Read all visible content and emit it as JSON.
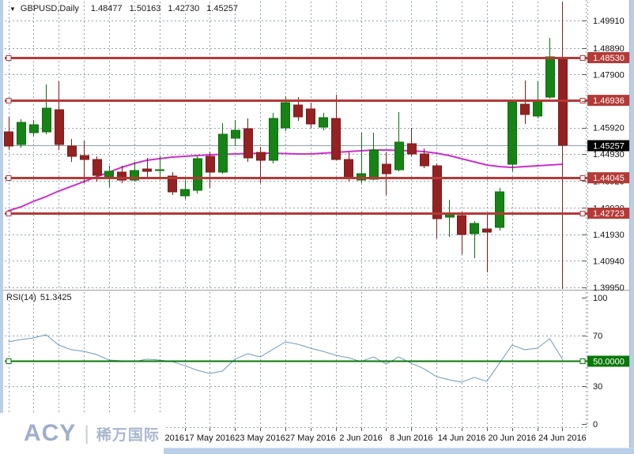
{
  "window": {
    "title": {
      "symbol": "GBPUSD,Daily",
      "open": "1.48477",
      "high": "1.50163",
      "low": "1.42730",
      "close": "1.45257"
    }
  },
  "rsi_label": {
    "name": "RSI(14)",
    "value": "51.3425"
  },
  "logo": {
    "brand": "ACY",
    "divider": "|",
    "name_cn": "稀万国际"
  },
  "chart_data": {
    "type": "candlestick",
    "symbol": "GBPUSD",
    "period": "Daily",
    "price_axis": {
      "ticks": [
        "1.49910",
        "1.48890",
        "1.47900",
        "1.46910",
        "1.45920",
        "1.44930",
        "1.43920",
        "1.42920",
        "1.41930",
        "1.40940",
        "1.39950"
      ],
      "boxed_levels": [
        "1.48530",
        "1.46936",
        "1.44045",
        "1.42723"
      ],
      "current_price": "1.45257"
    },
    "h_lines": [
      1.4853,
      1.46936,
      1.44045,
      1.42723
    ],
    "v_line_candle": 44,
    "x_axis": {
      "labels": [
        {
          "text": "11 May 2016",
          "candle": 12
        },
        {
          "text": "17 May 2016",
          "candle": 16
        },
        {
          "text": "23 May 2016",
          "candle": 20
        },
        {
          "text": "27 May 2016",
          "candle": 24
        },
        {
          "text": "2 Jun 2016",
          "candle": 28
        },
        {
          "text": "8 Jun 2016",
          "candle": 32
        },
        {
          "text": "14 Jun 2016",
          "candle": 36
        },
        {
          "text": "20 Jun 2016",
          "candle": 40
        },
        {
          "text": "24 Jun 2016",
          "candle": 44
        }
      ]
    },
    "candles": [
      {
        "date": "25 Apr 2016",
        "o": 1.4576,
        "h": 1.4632,
        "l": 1.45082,
        "c": 1.45229
      },
      {
        "date": "26 Apr 2016",
        "o": 1.45288,
        "h": 1.46232,
        "l": 1.4517,
        "c": 1.46114
      },
      {
        "date": "27 Apr 2016",
        "o": 1.4573,
        "h": 1.46202,
        "l": 1.45612,
        "c": 1.46025
      },
      {
        "date": "28 Apr 2016",
        "o": 1.4576,
        "h": 1.47529,
        "l": 1.45671,
        "c": 1.46644
      },
      {
        "date": "29 Apr 2016",
        "o": 1.46585,
        "h": 1.47647,
        "l": 1.45082,
        "c": 1.45288
      },
      {
        "date": "2 May 2016",
        "o": 1.45229,
        "h": 1.45494,
        "l": 1.44639,
        "c": 1.44846
      },
      {
        "date": "3 May 2016",
        "o": 1.44875,
        "h": 1.45435,
        "l": 1.43843,
        "c": 1.44728
      },
      {
        "date": "4 May 2016",
        "o": 1.44728,
        "h": 1.44846,
        "l": 1.43902,
        "c": 1.44138
      },
      {
        "date": "5 May 2016",
        "o": 1.4405,
        "h": 1.44492,
        "l": 1.43696,
        "c": 1.44286
      },
      {
        "date": "6 May 2016",
        "o": 1.44256,
        "h": 1.44492,
        "l": 1.43843,
        "c": 1.43961
      },
      {
        "date": "9 May 2016",
        "o": 1.43961,
        "h": 1.44639,
        "l": 1.43902,
        "c": 1.44315
      },
      {
        "date": "10 May 2016",
        "o": 1.44374,
        "h": 1.44787,
        "l": 1.4402,
        "c": 1.44286
      },
      {
        "date": "11 May 2016",
        "o": 1.44315,
        "h": 1.44875,
        "l": 1.4399,
        "c": 1.44344
      },
      {
        "date": "12 May 2016",
        "o": 1.44108,
        "h": 1.44256,
        "l": 1.43401,
        "c": 1.43519
      },
      {
        "date": "13 May 2016",
        "o": 1.43371,
        "h": 1.43961,
        "l": 1.43253,
        "c": 1.43607
      },
      {
        "date": "16 May 2016",
        "o": 1.43578,
        "h": 1.44875,
        "l": 1.4346,
        "c": 1.44757
      },
      {
        "date": "17 May 2016",
        "o": 1.44846,
        "h": 1.45023,
        "l": 1.43666,
        "c": 1.44256
      },
      {
        "date": "18 May 2016",
        "o": 1.44256,
        "h": 1.46084,
        "l": 1.44197,
        "c": 1.45671
      },
      {
        "date": "19 May 2016",
        "o": 1.45524,
        "h": 1.46202,
        "l": 1.45229,
        "c": 1.45819
      },
      {
        "date": "20 May 2016",
        "o": 1.45878,
        "h": 1.46261,
        "l": 1.44639,
        "c": 1.44787
      },
      {
        "date": "23 May 2016",
        "o": 1.44993,
        "h": 1.45199,
        "l": 1.43843,
        "c": 1.44698
      },
      {
        "date": "24 May 2016",
        "o": 1.44698,
        "h": 1.46467,
        "l": 1.4458,
        "c": 1.46261
      },
      {
        "date": "25 May 2016",
        "o": 1.45907,
        "h": 1.47087,
        "l": 1.45789,
        "c": 1.46851
      },
      {
        "date": "26 May 2016",
        "o": 1.46762,
        "h": 1.47057,
        "l": 1.46173,
        "c": 1.4632
      },
      {
        "date": "27 May 2016",
        "o": 1.46615,
        "h": 1.46851,
        "l": 1.45907,
        "c": 1.46055
      },
      {
        "date": "30 May 2016",
        "o": 1.45937,
        "h": 1.46467,
        "l": 1.45819,
        "c": 1.46291
      },
      {
        "date": "31 May 2016",
        "o": 1.46261,
        "h": 1.47146,
        "l": 1.44698,
        "c": 1.44728
      },
      {
        "date": "1 Jun 2016",
        "o": 1.44728,
        "h": 1.44993,
        "l": 1.43902,
        "c": 1.4405
      },
      {
        "date": "2 Jun 2016",
        "o": 1.43961,
        "h": 1.4573,
        "l": 1.43843,
        "c": 1.44197
      },
      {
        "date": "3 Jun 2016",
        "o": 1.4399,
        "h": 1.4573,
        "l": 1.43961,
        "c": 1.45082
      },
      {
        "date": "6 Jun 2016",
        "o": 1.44551,
        "h": 1.44993,
        "l": 1.43401,
        "c": 1.44197
      },
      {
        "date": "7 Jun 2016",
        "o": 1.44344,
        "h": 1.46497,
        "l": 1.44286,
        "c": 1.45376
      },
      {
        "date": "8 Jun 2016",
        "o": 1.45317,
        "h": 1.45907,
        "l": 1.44846,
        "c": 1.44934
      },
      {
        "date": "9 Jun 2016",
        "o": 1.44934,
        "h": 1.45141,
        "l": 1.44403,
        "c": 1.44492
      },
      {
        "date": "10 Jun 2016",
        "o": 1.44492,
        "h": 1.4458,
        "l": 1.4178,
        "c": 1.42517
      },
      {
        "date": "13 Jun 2016",
        "o": 1.42576,
        "h": 1.43224,
        "l": 1.41839,
        "c": 1.42723
      },
      {
        "date": "14 Jun 2016",
        "o": 1.42635,
        "h": 1.42782,
        "l": 1.4119,
        "c": 1.41927
      },
      {
        "date": "15 Jun 2016",
        "o": 1.41957,
        "h": 1.42428,
        "l": 1.41043,
        "c": 1.4234
      },
      {
        "date": "16 Jun 2016",
        "o": 1.42133,
        "h": 1.42664,
        "l": 1.40512,
        "c": 1.42015
      },
      {
        "date": "17 Jun 2016",
        "o": 1.42192,
        "h": 1.43666,
        "l": 1.42074,
        "c": 1.43519
      },
      {
        "date": "20 Jun 2016",
        "o": 1.44551,
        "h": 1.46939,
        "l": 1.44286,
        "c": 1.4688
      },
      {
        "date": "21 Jun 2016",
        "o": 1.46792,
        "h": 1.47676,
        "l": 1.46055,
        "c": 1.46408
      },
      {
        "date": "22 Jun 2016",
        "o": 1.4635,
        "h": 1.47647,
        "l": 1.46261,
        "c": 1.4691
      },
      {
        "date": "23 Jun 2016",
        "o": 1.47057,
        "h": 1.49269,
        "l": 1.46998,
        "c": 1.48561
      },
      {
        "date": "24 Jun 2016",
        "o": 1.48477,
        "h": 1.50163,
        "l": 1.4273,
        "c": 1.45257
      }
    ],
    "ma_line": [
      1.42811,
      1.42959,
      1.43165,
      1.43342,
      1.43548,
      1.43725,
      1.43902,
      1.44079,
      1.44256,
      1.44433,
      1.4458,
      1.44698,
      1.44757,
      1.44816,
      1.44846,
      1.44875,
      1.44905,
      1.44919,
      1.44934,
      1.44949,
      1.44964,
      1.44964,
      1.44949,
      1.44934,
      1.44934,
      1.44964,
      1.44993,
      1.45023,
      1.45052,
      1.45082,
      1.45082,
      1.45067,
      1.45052,
      1.45023,
      1.44964,
      1.44875,
      1.44757,
      1.44639,
      1.44521,
      1.44462,
      1.44433,
      1.44462,
      1.44492,
      1.44521,
      1.44551
    ],
    "rsi": {
      "period": 14,
      "value": 51.3425,
      "level_line": 50.0,
      "level_label": "50.0000",
      "axis_ticks": [
        "100",
        "70",
        "30",
        "0"
      ],
      "grid_levels": [
        70,
        30
      ],
      "values": [
        65.0,
        66.9,
        68.1,
        70.6,
        62.5,
        58.8,
        57.5,
        55.0,
        50.6,
        50.0,
        49.4,
        51.3,
        50.6,
        49.4,
        46.3,
        42.5,
        40.0,
        41.9,
        51.3,
        55.6,
        53.1,
        59.0,
        65.0,
        63.1,
        60.0,
        57.5,
        54.4,
        52.5,
        49.4,
        53.1,
        47.5,
        53.1,
        48.1,
        43.8,
        37.5,
        35.0,
        33.1,
        36.9,
        33.8,
        48.1,
        62.5,
        58.8,
        60.0,
        67.5,
        51.34
      ]
    },
    "layout": {
      "ylim": [
        1.3995,
        1.50163
      ],
      "rsi_ylim": [
        0,
        100
      ],
      "grid": true
    }
  },
  "colors": {
    "grid": "#93a1b3",
    "bull": "#178317",
    "bullStroke": "#0c6e0c",
    "bear": "#952222",
    "bearStroke": "#7d1b1b",
    "hline": "#b43a37",
    "vline": "#8e2020",
    "ma": "#cc2fcc",
    "rsi": "#6f99b8",
    "rsiLevel": "#087808",
    "priceLine": "#8ea0b5",
    "axisText": "#111111",
    "boxText": "#ffffff",
    "currentBox": "#000000"
  }
}
